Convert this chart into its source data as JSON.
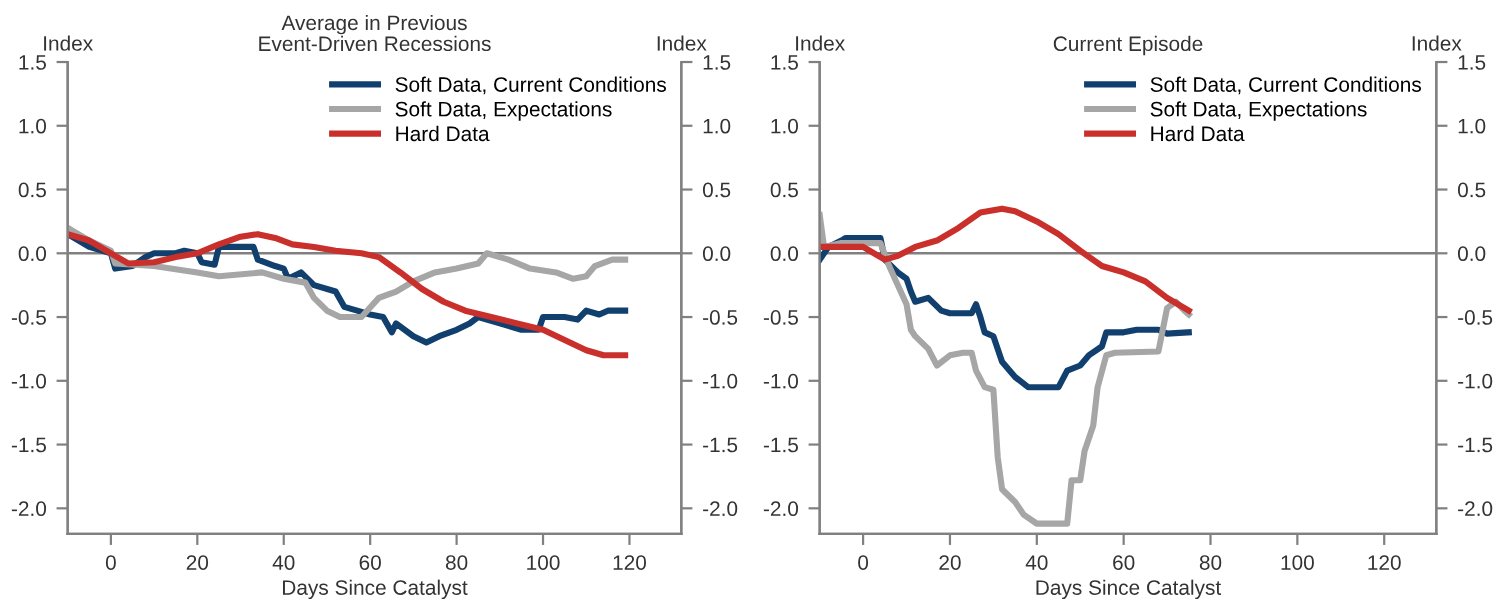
{
  "chart_data": [
    {
      "type": "line",
      "title": "Average in Previous\nEvent-Driven Recessions",
      "xlabel": "Days Since Catalyst",
      "ylabel": "Index",
      "y2label": "Index",
      "xlim": [
        -10,
        132
      ],
      "xticks": [
        0,
        20,
        40,
        60,
        80,
        100,
        120
      ],
      "ylim": [
        -2.2,
        1.5
      ],
      "yticks": [
        {
          "value": -2,
          "label": "-2.0"
        },
        {
          "value": -1.5,
          "label": "-1.5"
        },
        {
          "value": -1,
          "label": "-1.0"
        },
        {
          "value": -0.5,
          "label": "-0.5"
        },
        {
          "value": 0,
          "label": "0.0"
        },
        {
          "value": 0.5,
          "label": "0.5"
        },
        {
          "value": 1,
          "label": "1.0"
        },
        {
          "value": 1.5,
          "label": "1.5"
        }
      ],
      "y2lim": [
        -2.2,
        1.5
      ],
      "y2ticks": [
        {
          "value": -2,
          "label": "-2.0"
        },
        {
          "value": -1.5,
          "label": "-1.5"
        },
        {
          "value": -1,
          "label": "-1.0"
        },
        {
          "value": -0.5,
          "label": "-0.5"
        },
        {
          "value": 0,
          "label": "0.0"
        },
        {
          "value": 0.5,
          "label": "0.5"
        },
        {
          "value": 1,
          "label": "1.0"
        },
        {
          "value": 1.5,
          "label": "1.5"
        }
      ],
      "grid": false,
      "legend": "top right",
      "line_style": "solid",
      "marker": "none",
      "ref_lines": [
        {
          "axis": "y",
          "value": 0,
          "color": "#808080"
        }
      ],
      "series": [
        {
          "name": "Soft Data, Current Conditions",
          "color": "#12406e",
          "x": [
            -10,
            -5,
            0,
            1,
            5,
            8,
            10,
            15,
            17,
            20,
            21,
            24,
            25,
            33,
            34,
            38,
            40,
            41,
            44,
            47,
            52,
            54,
            57,
            60,
            63,
            65,
            66,
            70,
            73,
            76,
            80,
            83,
            85,
            90,
            95,
            99,
            100,
            105,
            108,
            110,
            113,
            115,
            119
          ],
          "values": [
            0.15,
            0.05,
            0.0,
            -0.12,
            -0.1,
            -0.03,
            0.0,
            0.0,
            0.02,
            0.0,
            -0.07,
            -0.09,
            0.05,
            0.05,
            -0.05,
            -0.1,
            -0.12,
            -0.2,
            -0.15,
            -0.25,
            -0.3,
            -0.42,
            -0.45,
            -0.48,
            -0.5,
            -0.62,
            -0.55,
            -0.65,
            -0.7,
            -0.65,
            -0.6,
            -0.55,
            -0.5,
            -0.55,
            -0.6,
            -0.6,
            -0.5,
            -0.5,
            -0.52,
            -0.45,
            -0.48,
            -0.45,
            -0.45
          ]
        },
        {
          "name": "Soft Data, Expectations",
          "color": "#a6a6a6",
          "x": [
            -10,
            -5,
            0,
            1,
            10,
            20,
            25,
            35,
            40,
            45,
            47,
            50,
            53,
            58,
            62,
            66,
            70,
            75,
            80,
            85,
            87,
            92,
            97,
            103,
            107,
            110,
            112,
            116,
            119
          ],
          "values": [
            0.2,
            0.1,
            0.02,
            -0.08,
            -0.1,
            -0.15,
            -0.18,
            -0.15,
            -0.2,
            -0.23,
            -0.35,
            -0.45,
            -0.5,
            -0.5,
            -0.35,
            -0.3,
            -0.22,
            -0.15,
            -0.12,
            -0.08,
            0.0,
            -0.05,
            -0.12,
            -0.15,
            -0.2,
            -0.18,
            -0.1,
            -0.05,
            -0.05
          ]
        },
        {
          "name": "Hard Data",
          "color": "#c9302c",
          "x": [
            -10,
            -5,
            0,
            4,
            10,
            15,
            20,
            25,
            30,
            34,
            38,
            42,
            47,
            52,
            58,
            62,
            67,
            72,
            77,
            82,
            88,
            94,
            100,
            105,
            110,
            114,
            119
          ],
          "values": [
            0.15,
            0.1,
            0.0,
            -0.08,
            -0.07,
            -0.03,
            0.0,
            0.07,
            0.13,
            0.15,
            0.12,
            0.07,
            0.05,
            0.02,
            0.0,
            -0.03,
            -0.15,
            -0.28,
            -0.38,
            -0.45,
            -0.5,
            -0.55,
            -0.6,
            -0.68,
            -0.76,
            -0.8,
            -0.8
          ]
        }
      ]
    },
    {
      "type": "line",
      "title": "Current Episode",
      "xlabel": "Days Since Catalyst",
      "ylabel": "Index",
      "y2label": "Index",
      "xlim": [
        -10,
        132
      ],
      "xticks": [
        0,
        20,
        40,
        60,
        80,
        100,
        120
      ],
      "ylim": [
        -2.2,
        1.5
      ],
      "yticks": [
        {
          "value": -2,
          "label": "-2.0"
        },
        {
          "value": -1.5,
          "label": "-1.5"
        },
        {
          "value": -1,
          "label": "-1.0"
        },
        {
          "value": -0.5,
          "label": "-0.5"
        },
        {
          "value": 0,
          "label": "0.0"
        },
        {
          "value": 0.5,
          "label": "0.5"
        },
        {
          "value": 1,
          "label": "1.0"
        },
        {
          "value": 1.5,
          "label": "1.5"
        }
      ],
      "y2lim": [
        -2.2,
        1.5
      ],
      "y2ticks": [
        {
          "value": -2,
          "label": "-2.0"
        },
        {
          "value": -1.5,
          "label": "-1.5"
        },
        {
          "value": -1,
          "label": "-1.0"
        },
        {
          "value": -0.5,
          "label": "-0.5"
        },
        {
          "value": 0,
          "label": "0.0"
        },
        {
          "value": 0.5,
          "label": "0.5"
        },
        {
          "value": 1,
          "label": "1.0"
        },
        {
          "value": 1.5,
          "label": "1.5"
        }
      ],
      "grid": false,
      "legend": "top right",
      "line_style": "solid",
      "marker": "none",
      "ref_lines": [
        {
          "axis": "y",
          "value": 0,
          "color": "#808080"
        }
      ],
      "series": [
        {
          "name": "Soft Data, Current Conditions",
          "color": "#12406e",
          "x": [
            -10,
            -8,
            -5,
            -4,
            4,
            5,
            8,
            10,
            11,
            12,
            15,
            18,
            20,
            25,
            26,
            27,
            28,
            30,
            32,
            35,
            38,
            45,
            47,
            50,
            52,
            55,
            56,
            60,
            63,
            68,
            70,
            75
          ],
          "values": [
            -0.05,
            0.05,
            0.1,
            0.12,
            0.12,
            -0.05,
            -0.15,
            -0.2,
            -0.3,
            -0.38,
            -0.35,
            -0.45,
            -0.47,
            -0.47,
            -0.4,
            -0.5,
            -0.62,
            -0.65,
            -0.85,
            -0.97,
            -1.05,
            -1.05,
            -0.92,
            -0.88,
            -0.8,
            -0.73,
            -0.62,
            -0.62,
            -0.6,
            -0.6,
            -0.63,
            -0.62
          ]
        },
        {
          "name": "Soft Data, Expectations",
          "color": "#a6a6a6",
          "x": [
            -10,
            -9,
            -5,
            4,
            6,
            8,
            10,
            11,
            12,
            15,
            17,
            20,
            23,
            25,
            26,
            28,
            30,
            31,
            32,
            35,
            37,
            40,
            47,
            48,
            50,
            51,
            53,
            54,
            56,
            58,
            68,
            70,
            72,
            74,
            75
          ],
          "values": [
            0.3,
            0.05,
            0.08,
            0.08,
            -0.1,
            -0.25,
            -0.4,
            -0.6,
            -0.65,
            -0.75,
            -0.88,
            -0.8,
            -0.78,
            -0.78,
            -0.92,
            -1.05,
            -1.07,
            -1.6,
            -1.85,
            -1.95,
            -2.05,
            -2.12,
            -2.12,
            -1.78,
            -1.78,
            -1.55,
            -1.35,
            -1.05,
            -0.8,
            -0.78,
            -0.77,
            -0.43,
            -0.38,
            -0.45,
            -0.48
          ]
        },
        {
          "name": "Hard Data",
          "color": "#c9302c",
          "x": [
            -10,
            0,
            5,
            8,
            12,
            17,
            22,
            27,
            32,
            35,
            40,
            45,
            50,
            55,
            60,
            65,
            70,
            75
          ],
          "values": [
            0.05,
            0.05,
            -0.05,
            -0.02,
            0.05,
            0.1,
            0.2,
            0.32,
            0.35,
            0.33,
            0.25,
            0.15,
            0.02,
            -0.1,
            -0.15,
            -0.22,
            -0.35,
            -0.45
          ]
        }
      ]
    }
  ]
}
